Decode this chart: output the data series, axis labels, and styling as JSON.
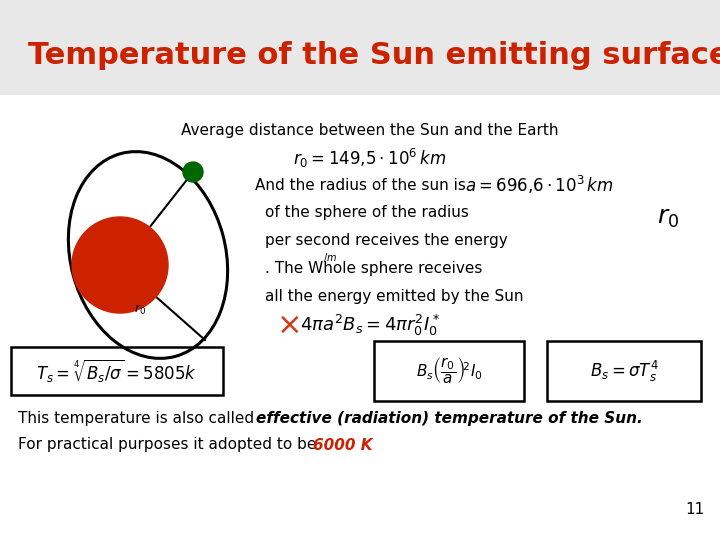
{
  "title": "Temperature of the Sun emitting surface",
  "title_color": "#cc2200",
  "title_fontsize": 22,
  "bg_color": "#e8e8e8",
  "content_bg": "#ffffff",
  "line1": "Average distance between the Sun and the Earth",
  "eq1": "$r_0 = 149{,}5 \\cdot 10^6 \\, km$",
  "line2_pre": "And the radius of the sun is",
  "eq2": "$a = 696{,}6 \\cdot 10^3 \\, km$",
  "label_r0_big": "$r_0$",
  "eq3_left": "$4\\pi a^2 B_s = 4\\pi r_0^2 I_0^*$",
  "eq4": "$T_s = \\sqrt[4]{B_s / \\sigma} = 5805k$",
  "eq5": "$B_s \\left(\\dfrac{r_0}{a}\\right)^{\\!2} I_0$",
  "eq6": "$B_s = \\sigma T_s^4$",
  "text_bottom1_plain": "This temperature is also called ",
  "text_bottom1_bold": "effective (radiation) temperature of the Sun.",
  "text_bottom2_plain": "For practical purposes it adopted to be ",
  "text_bottom2_colored": "6000 K",
  "page_number": "11",
  "sun_color": "#cc2200",
  "earth_color": "#006600"
}
